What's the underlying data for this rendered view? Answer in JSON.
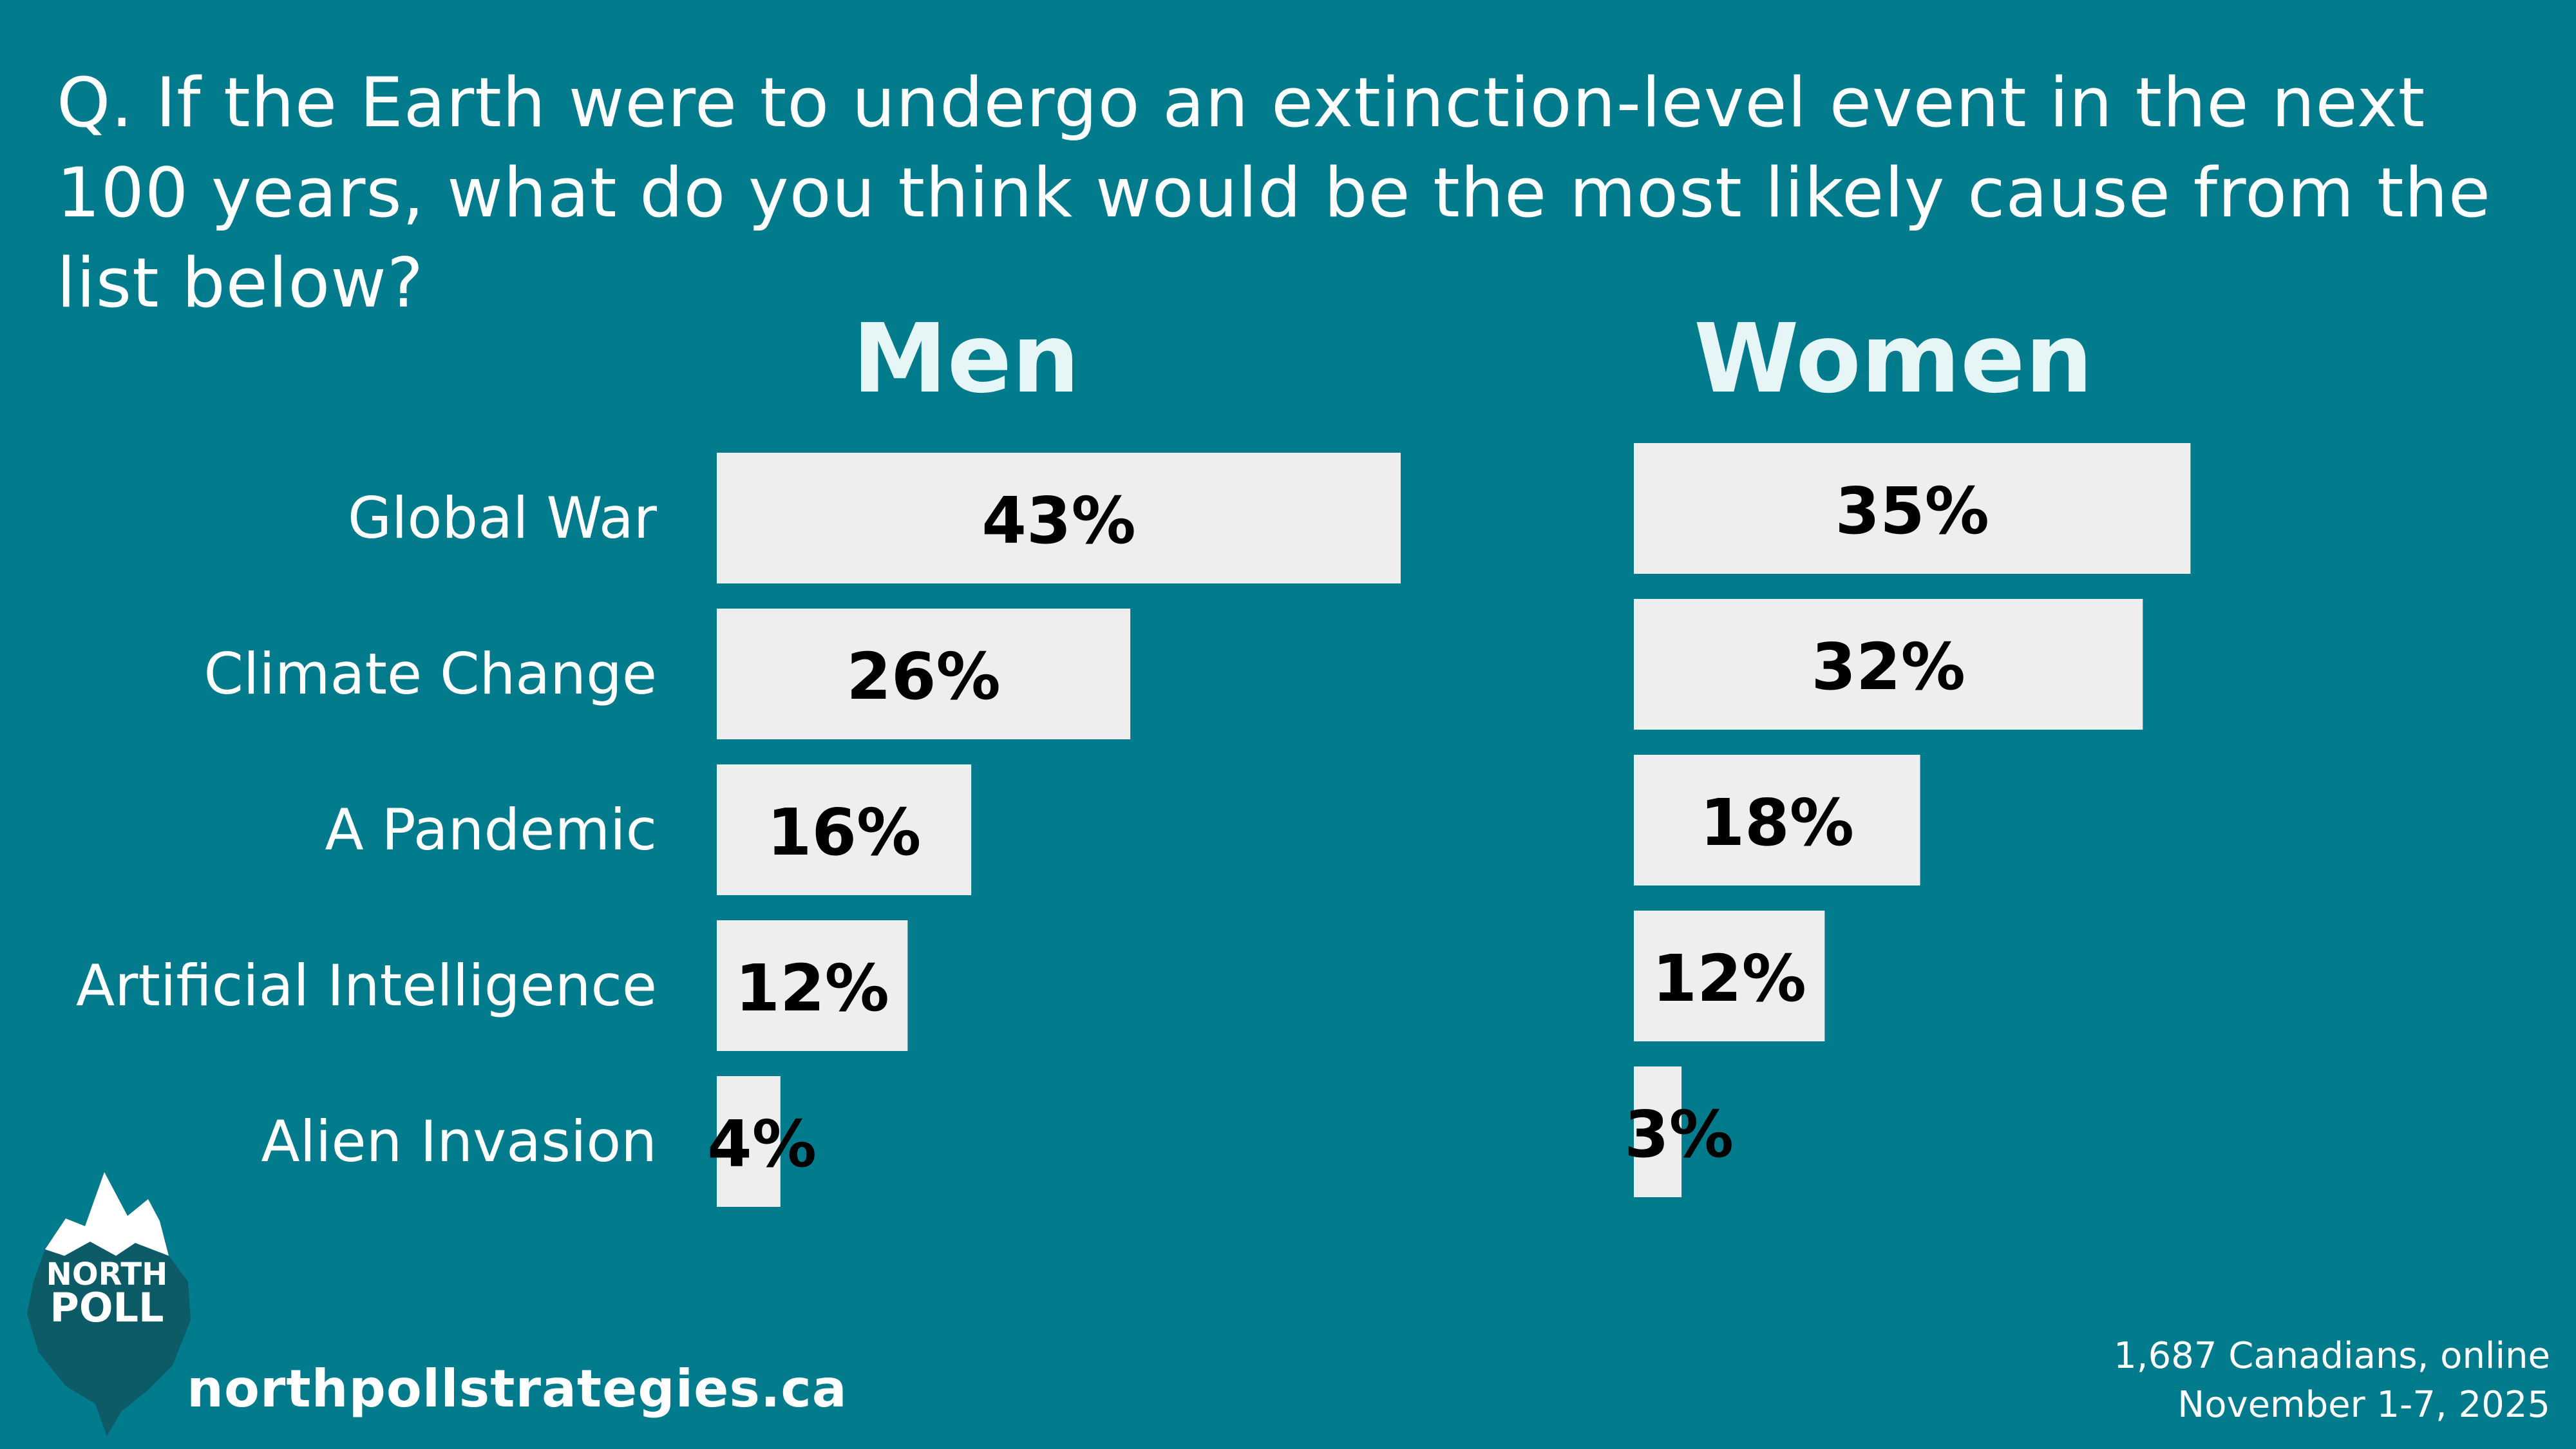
{
  "question": "Q. If the Earth were to undergo an extinction-level event in the next 100 years, what do you think would be the most likely cause from the list below?",
  "colors": {
    "background": "#027b8c",
    "bar": "#eeeeee",
    "value_text": "#000000",
    "title_text": "#e6f6f6",
    "label_text": "#ffffff",
    "logo_dark": "#0d5b66"
  },
  "chart_data": {
    "type": "bar",
    "orientation": "horizontal",
    "categories": [
      "Global War",
      "Climate Change",
      "A Pandemic",
      "Artificial Intelligence",
      "Alien Invasion"
    ],
    "series": [
      {
        "name": "Men",
        "values": [
          43,
          26,
          16,
          12,
          4
        ],
        "value_labels": [
          "43%",
          "26%",
          "16%",
          "12%",
          "4%"
        ]
      },
      {
        "name": "Women",
        "values": [
          35,
          32,
          18,
          12,
          3
        ],
        "value_labels": [
          "35%",
          "32%",
          "18%",
          "12%",
          "3%"
        ]
      }
    ],
    "unit": "%",
    "xlim": [
      0,
      43
    ]
  },
  "logo": {
    "line1": "NORTH",
    "line2": "POLL"
  },
  "footer": {
    "website": "northpollstrategies.ca",
    "sample": "1,687 Canadians, online",
    "dates": "November 1-7, 2025"
  }
}
